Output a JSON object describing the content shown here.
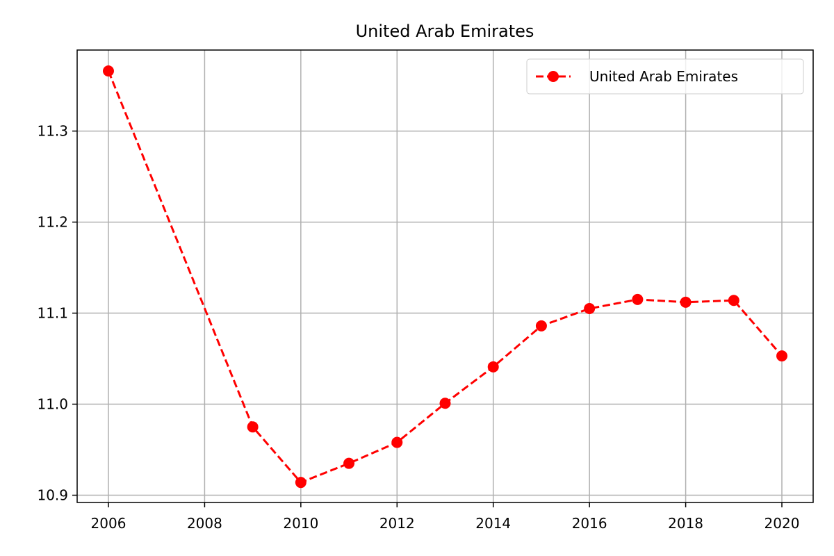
{
  "chart_data": {
    "type": "line",
    "title": "United Arab Emirates",
    "xlabel": "",
    "ylabel": "",
    "x": [
      2006,
      2009,
      2010,
      2011,
      2012,
      2013,
      2014,
      2015,
      2016,
      2017,
      2018,
      2019,
      2020
    ],
    "series": [
      {
        "name": "United Arab Emirates",
        "values": [
          11.366,
          10.975,
          10.914,
          10.935,
          10.958,
          11.001,
          11.041,
          11.086,
          11.105,
          11.115,
          11.112,
          11.114,
          11.053
        ],
        "color": "#ff0000",
        "line_style": "dashed",
        "marker": "circle"
      }
    ],
    "xticks": [
      2006,
      2008,
      2010,
      2012,
      2014,
      2016,
      2018,
      2020
    ],
    "xtick_labels": [
      "2006",
      "2008",
      "2010",
      "2012",
      "2014",
      "2016",
      "2018",
      "2020"
    ],
    "yticks": [
      10.9,
      11.0,
      11.1,
      11.2,
      11.3
    ],
    "ytick_labels": [
      "10.9",
      "11.0",
      "11.1",
      "11.2",
      "11.3"
    ],
    "xlim": [
      2005.35,
      2020.65
    ],
    "ylim": [
      10.892,
      11.389
    ],
    "grid": true,
    "legend_position": "top-right"
  }
}
